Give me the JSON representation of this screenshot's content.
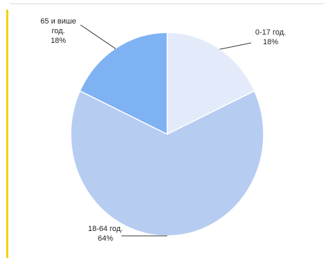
{
  "colors": {
    "accent_bar": "#f2d200",
    "slice_outline": "#ffffff",
    "leader_line": "#333333"
  },
  "chart_data": {
    "type": "pie",
    "title": "",
    "categories": [
      "0-17 год.",
      "18-64 год.",
      "65 и више год."
    ],
    "values": [
      18,
      64,
      18
    ],
    "unit": "%",
    "colors": [
      "#e3ebfb",
      "#b6cdf1",
      "#7eb2f3"
    ],
    "labels": [
      {
        "lines": [
          "0-17 год.",
          "18%"
        ]
      },
      {
        "lines": [
          "18-64 год.",
          "64%"
        ]
      },
      {
        "lines": [
          "65 и више",
          "год.",
          "18%"
        ]
      }
    ],
    "legend": "none",
    "grid": false
  }
}
